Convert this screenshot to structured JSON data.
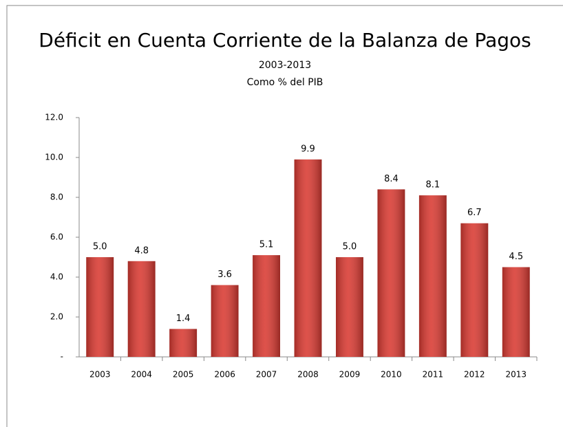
{
  "chart_data": {
    "type": "bar",
    "title": "Déficit en Cuenta Corriente de la Balanza de Pagos",
    "subtitle": "2003-2013",
    "subtitle2": "Como % del PIB",
    "categories": [
      "2003",
      "2004",
      "2005",
      "2006",
      "2007",
      "2008",
      "2009",
      "2010",
      "2011",
      "2012",
      "2013"
    ],
    "values": [
      5.0,
      4.8,
      1.4,
      3.6,
      5.1,
      9.9,
      5.0,
      8.4,
      8.1,
      6.7,
      4.5
    ],
    "value_labels": [
      "5.0",
      "4.8",
      "1.4",
      "3.6",
      "5.1",
      "9.9",
      "5.0",
      "8.4",
      "8.1",
      "6.7",
      "4.5"
    ],
    "color": "#d93a32",
    "ylim": [
      0,
      12
    ],
    "yticks": [
      {
        "value": 0,
        "label": "-"
      },
      {
        "value": 2,
        "label": "2.0"
      },
      {
        "value": 4,
        "label": "4.0"
      },
      {
        "value": 6,
        "label": "6.0"
      },
      {
        "value": 8,
        "label": "8.0"
      },
      {
        "value": 10,
        "label": "10.0"
      },
      {
        "value": 12,
        "label": "12.0"
      }
    ],
    "grid": false
  }
}
